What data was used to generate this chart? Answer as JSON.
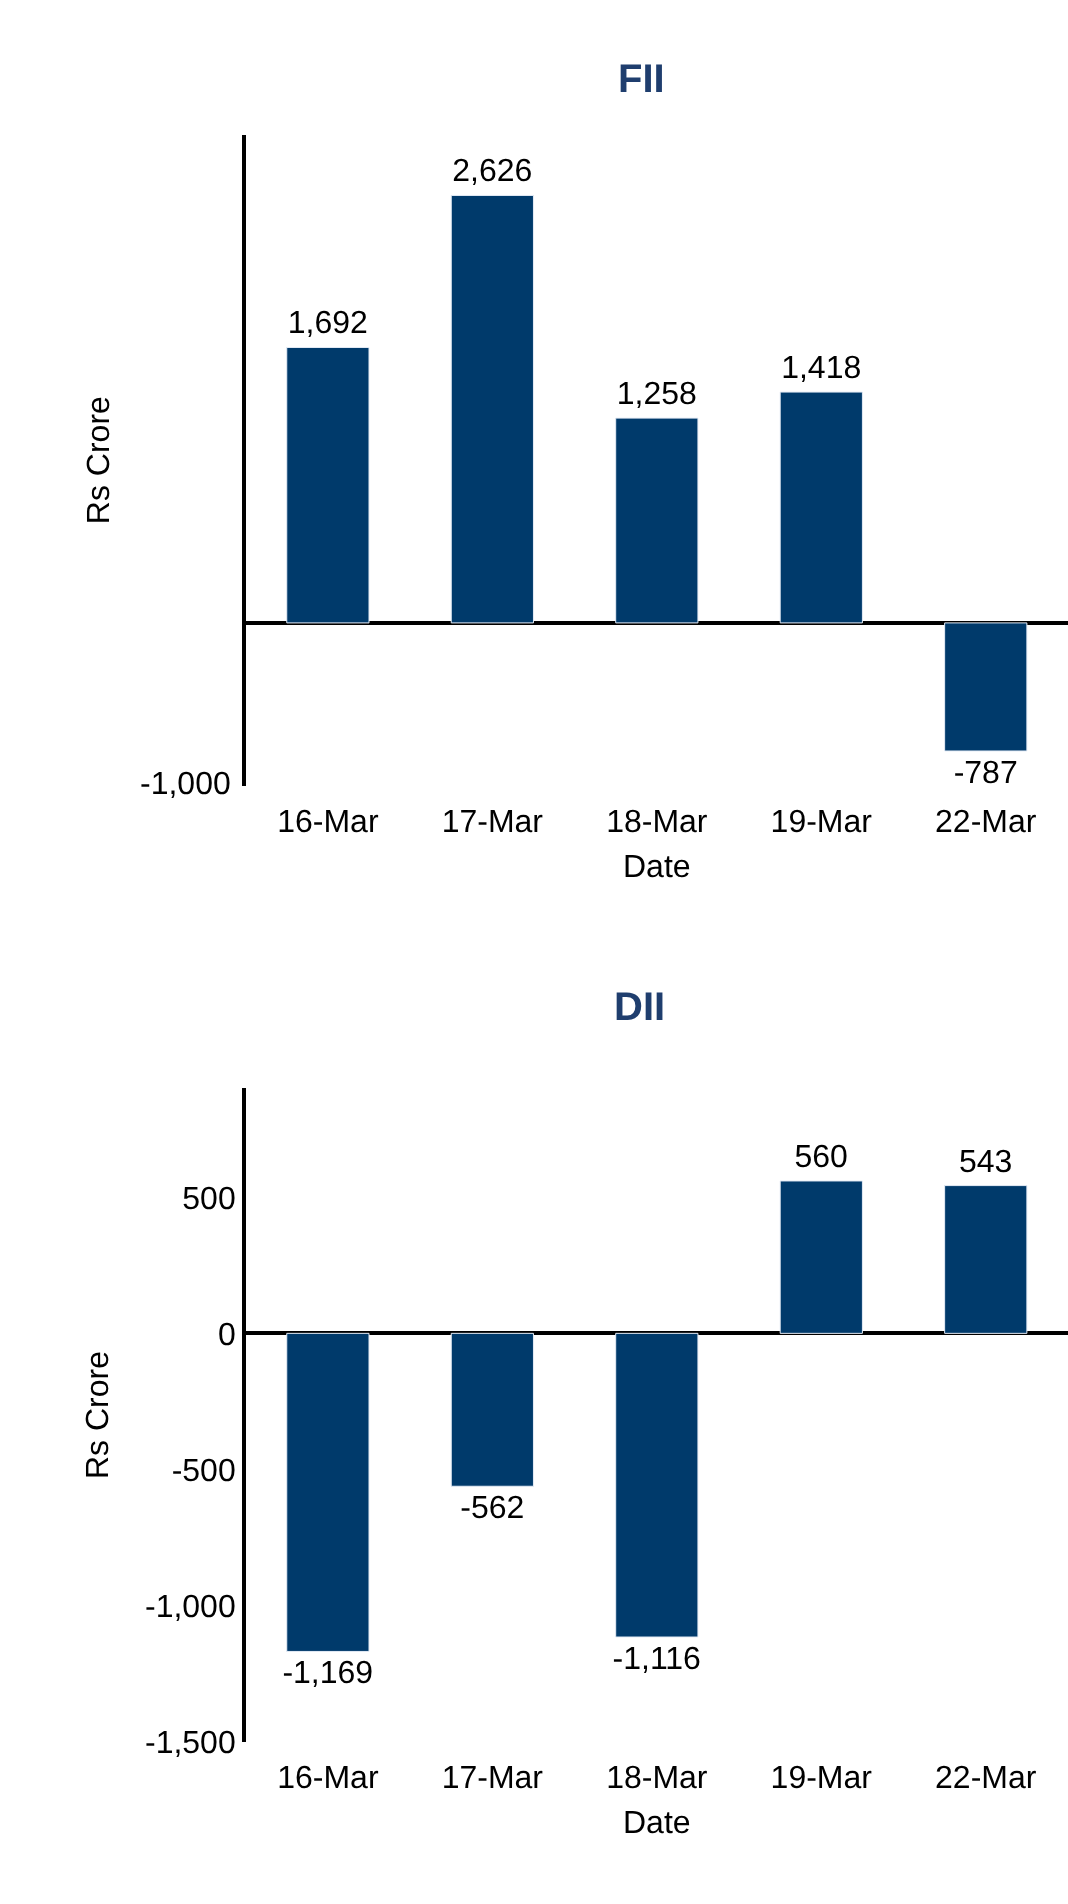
{
  "chart_data": [
    {
      "type": "bar",
      "title": "FII",
      "xlabel": "Date",
      "ylabel": "Rs Crore",
      "categories": [
        "16-Mar",
        "17-Mar",
        "18-Mar",
        "19-Mar",
        "22-Mar"
      ],
      "series": [
        {
          "color": "#003a6b",
          "values": [
            1692,
            2626,
            1258,
            1418,
            -787
          ],
          "value_labels": [
            "1,692",
            "2,626",
            "1,258",
            "1,418",
            "-787"
          ]
        }
      ],
      "ylim": [
        -1000,
        3000
      ],
      "annotations": [
        "-1,000"
      ],
      "tick_labels": "x"
    },
    {
      "type": "bar",
      "title": "DII",
      "xlabel": "Date",
      "ylabel": "Rs Crore",
      "categories": [
        "16-Mar",
        "17-Mar",
        "18-Mar",
        "19-Mar",
        "22-Mar"
      ],
      "series": [
        {
          "color": "#003a6b",
          "values": [
            -1169,
            -562,
            -1116,
            560,
            543
          ],
          "value_labels": [
            "-1,169",
            "-562",
            "-1,116",
            "560",
            "543"
          ]
        }
      ],
      "ylim": [
        -1500,
        900
      ],
      "yticks": [
        {
          "value": 500,
          "label": "500"
        },
        {
          "value": 0,
          "label": "0"
        },
        {
          "value": -500,
          "label": "-500"
        },
        {
          "value": -1000,
          "label": "-1,000"
        },
        {
          "value": -1500,
          "label": "-1,500"
        }
      ]
    }
  ]
}
